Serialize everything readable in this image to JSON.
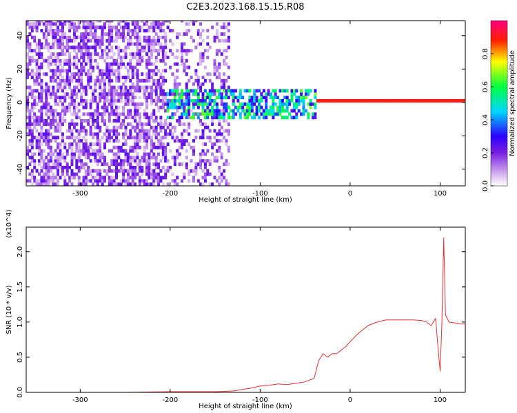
{
  "title": "C2E3.2023.168.15.15.R08",
  "chart_data": [
    {
      "type": "heatmap",
      "xlabel": "Height of straight line (km)",
      "ylabel": "Frequency (Hz)",
      "xlim": [
        -360,
        128
      ],
      "ylim": [
        -50,
        49
      ],
      "xticks": [
        -300,
        -200,
        -100,
        0,
        100
      ],
      "yticks": [
        -40,
        -20,
        0,
        20,
        40
      ],
      "colorbar": {
        "label": "Normalized spectral amplitude",
        "range": [
          0.0,
          1.0
        ],
        "ticks": [
          "0.0",
          "0.2",
          "0.4",
          "0.6",
          "0.8"
        ],
        "colors": [
          "#ffffff",
          "#d8b4f0",
          "#7a1fe0",
          "#2b00ff",
          "#00d8ff",
          "#00ff40",
          "#ffff00",
          "#ff2000",
          "#ff0080"
        ]
      },
      "regions": [
        {
          "x": [
            -360,
            -205
          ],
          "freq": [
            -50,
            49
          ],
          "amplitude": 0.12,
          "note": "broadband noise"
        },
        {
          "x": [
            -205,
            -135
          ],
          "freq": [
            -50,
            49
          ],
          "amplitude": 0.06,
          "note": "sparse noise"
        },
        {
          "x": [
            -205,
            -40
          ],
          "freq": [
            -10,
            8
          ],
          "amplitude": 0.45,
          "note": "signal band"
        },
        {
          "x": [
            -40,
            128
          ],
          "freq": [
            -1,
            1
          ],
          "amplitude": 0.9,
          "note": "carrier line"
        }
      ]
    },
    {
      "type": "line",
      "xlabel": "Height of straight line (km)",
      "ylabel": "SNR (10 * v/v)",
      "y_multiplier": "(x10^4)",
      "xlim": [
        -360,
        128
      ],
      "ylim": [
        0.0,
        2.35
      ],
      "xticks": [
        -300,
        -200,
        -100,
        0,
        100
      ],
      "yticks": [
        "0.0",
        "0.5",
        "1.0",
        "1.5",
        "2.0"
      ],
      "series": [
        {
          "color": "#e83030",
          "x": [
            -360,
            -300,
            -250,
            -200,
            -150,
            -130,
            -120,
            -110,
            -100,
            -90,
            -80,
            -70,
            -60,
            -50,
            -40,
            -35,
            -30,
            -25,
            -20,
            -15,
            -10,
            -5,
            0,
            10,
            20,
            30,
            40,
            50,
            60,
            70,
            80,
            85,
            90,
            95,
            98,
            100,
            102,
            104,
            106,
            110,
            120,
            128
          ],
          "y": [
            0.0,
            0.0,
            0.0,
            0.01,
            0.01,
            0.02,
            0.04,
            0.06,
            0.09,
            0.1,
            0.12,
            0.11,
            0.13,
            0.15,
            0.2,
            0.45,
            0.55,
            0.5,
            0.55,
            0.55,
            0.6,
            0.65,
            0.72,
            0.85,
            0.95,
            1.0,
            1.03,
            1.03,
            1.03,
            1.03,
            1.02,
            1.0,
            0.95,
            1.05,
            0.6,
            0.3,
            1.0,
            2.2,
            1.1,
            1.0,
            0.98,
            0.97
          ]
        }
      ]
    }
  ]
}
